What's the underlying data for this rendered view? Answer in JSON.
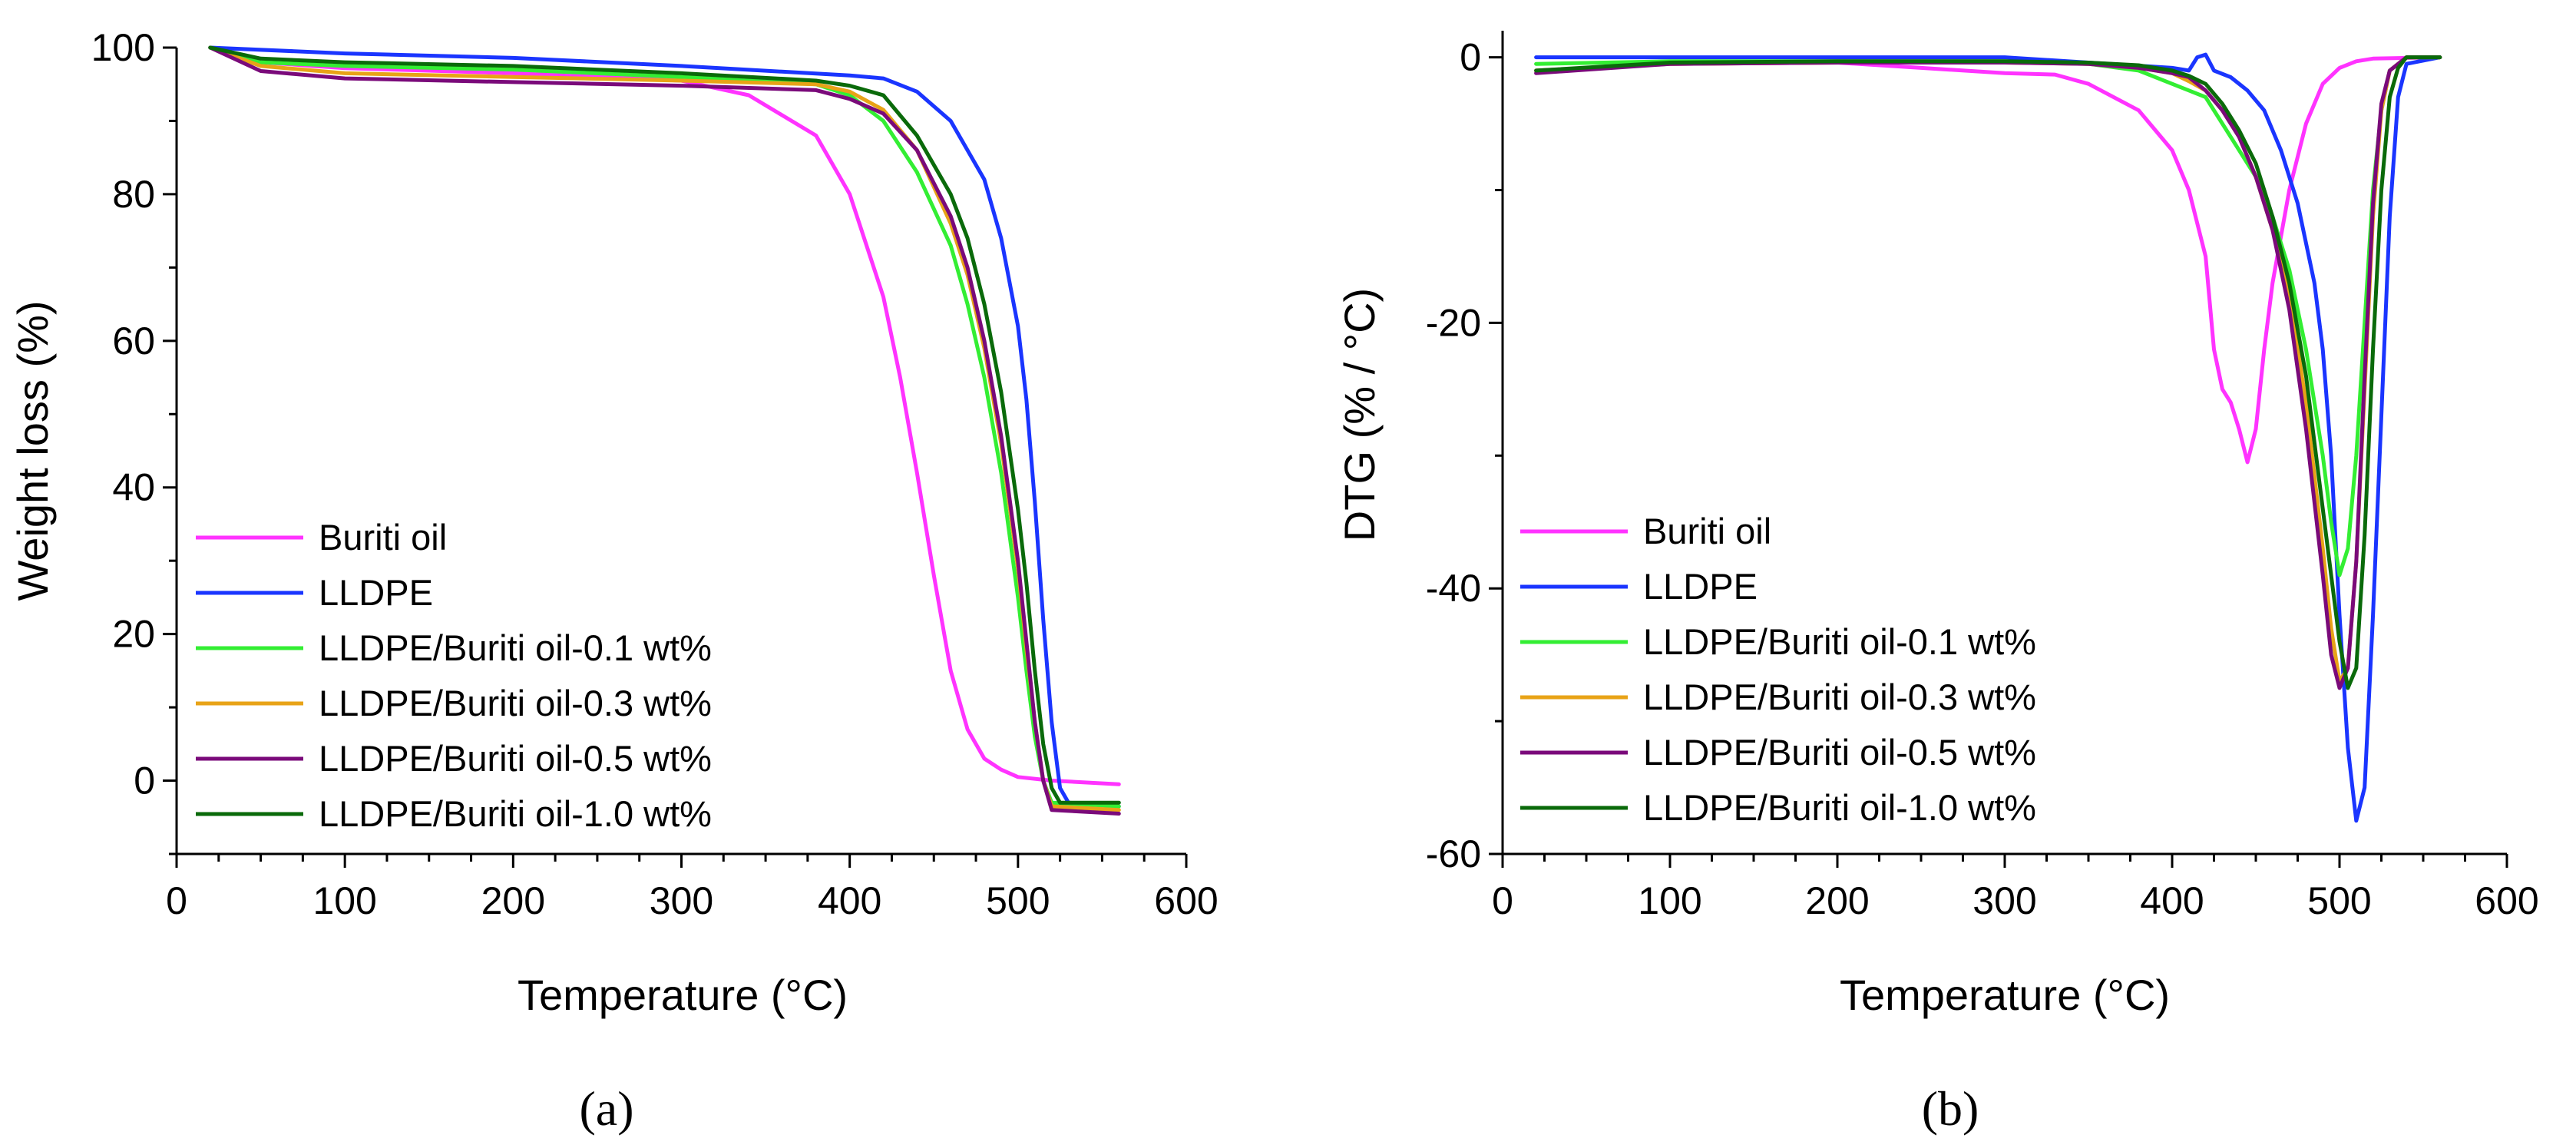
{
  "chart_data": [
    {
      "id": "a",
      "type": "line",
      "panel_label": "(a)",
      "title": "",
      "xlabel": "Temperature (°C)",
      "ylabel": "Weight loss (%)",
      "xlim": [
        0,
        600
      ],
      "ylim": [
        -10,
        100
      ],
      "xticks": [
        0,
        100,
        200,
        300,
        400,
        500,
        600
      ],
      "yticks": [
        0,
        20,
        40,
        60,
        80,
        100
      ],
      "legend_position": "bottom-left",
      "series": [
        {
          "name": "Buriti oil",
          "color": "#ff33ff",
          "x": [
            20,
            50,
            100,
            200,
            300,
            340,
            380,
            400,
            420,
            430,
            440,
            450,
            460,
            470,
            480,
            490,
            500,
            520,
            560
          ],
          "y": [
            100,
            98,
            97.2,
            96.5,
            95.5,
            93.5,
            88,
            80,
            66,
            55,
            42,
            28,
            15,
            7,
            3,
            1.5,
            0.5,
            0,
            -0.5
          ]
        },
        {
          "name": "LLDPE",
          "color": "#1a35ff",
          "x": [
            20,
            100,
            200,
            300,
            400,
            420,
            440,
            460,
            480,
            490,
            500,
            505,
            510,
            515,
            520,
            525,
            530,
            560
          ],
          "y": [
            100,
            99.2,
            98.6,
            97.5,
            96.2,
            95.8,
            94,
            90,
            82,
            74,
            62,
            52,
            38,
            22,
            8,
            -1,
            -3,
            -3.5
          ]
        },
        {
          "name": "LLDPE/Buriti oil-0.1 wt%",
          "color": "#33ee33",
          "x": [
            20,
            50,
            100,
            200,
            300,
            380,
            400,
            420,
            440,
            460,
            470,
            480,
            490,
            500,
            505,
            510,
            515,
            520,
            560
          ],
          "y": [
            100,
            98,
            97.5,
            97,
            96,
            95,
            93.5,
            90,
            83,
            73,
            65,
            55,
            42,
            25,
            15,
            6,
            0,
            -3,
            -3.5
          ]
        },
        {
          "name": "LLDPE/Buriti oil-0.3 wt%",
          "color": "#e8a317",
          "x": [
            20,
            50,
            100,
            200,
            300,
            380,
            400,
            420,
            440,
            460,
            470,
            480,
            490,
            500,
            505,
            510,
            515,
            520,
            560
          ],
          "y": [
            100,
            97.5,
            96.5,
            96,
            95.5,
            95,
            94,
            91.5,
            86,
            76,
            69,
            59,
            46,
            29,
            18,
            8,
            0,
            -3.5,
            -4
          ]
        },
        {
          "name": "LLDPE/Buriti oil-0.5 wt%",
          "color": "#7a0a7a",
          "x": [
            20,
            50,
            100,
            200,
            300,
            380,
            400,
            420,
            440,
            460,
            470,
            480,
            490,
            500,
            505,
            510,
            515,
            520,
            560
          ],
          "y": [
            100,
            96.8,
            95.8,
            95.3,
            94.8,
            94.2,
            93,
            91,
            86,
            77,
            70,
            60,
            47,
            30,
            19,
            8,
            0,
            -4,
            -4.5
          ]
        },
        {
          "name": "LLDPE/Buriti oil-1.0 wt%",
          "color": "#0a6a0a",
          "x": [
            20,
            50,
            100,
            200,
            300,
            380,
            400,
            420,
            440,
            460,
            470,
            480,
            490,
            500,
            505,
            510,
            515,
            520,
            525,
            560
          ],
          "y": [
            100,
            98.5,
            98,
            97.5,
            96.5,
            95.5,
            94.8,
            93.5,
            88,
            80,
            74,
            65,
            53,
            37,
            27,
            15,
            5,
            -1,
            -3,
            -3
          ]
        }
      ]
    },
    {
      "id": "b",
      "type": "line",
      "panel_label": "(b)",
      "title": "",
      "xlabel": "Temperature (°C)",
      "ylabel": "DTG (% / °C)",
      "xlim": [
        0,
        600
      ],
      "ylim": [
        -60,
        2
      ],
      "xticks": [
        0,
        100,
        200,
        300,
        400,
        500,
        600
      ],
      "yticks": [
        -60,
        -40,
        -20,
        0
      ],
      "legend_position": "bottom-left",
      "series": [
        {
          "name": "Buriti oil",
          "color": "#ff33ff",
          "x": [
            20,
            100,
            200,
            250,
            300,
            330,
            350,
            380,
            400,
            410,
            420,
            425,
            430,
            435,
            440,
            445,
            450,
            455,
            460,
            470,
            480,
            490,
            500,
            510,
            520,
            560
          ],
          "y": [
            -1,
            -0.5,
            -0.4,
            -0.8,
            -1.2,
            -1.3,
            -2,
            -4,
            -7,
            -10,
            -15,
            -22,
            -25,
            -26,
            -28,
            -30.5,
            -28,
            -22,
            -17,
            -10,
            -5,
            -2,
            -0.8,
            -0.3,
            -0.1,
            0
          ]
        },
        {
          "name": "LLDPE",
          "color": "#1a35ff",
          "x": [
            20,
            100,
            200,
            300,
            400,
            410,
            415,
            420,
            425,
            435,
            445,
            455,
            465,
            475,
            485,
            490,
            495,
            500,
            505,
            510,
            515,
            520,
            525,
            530,
            535,
            540,
            560
          ],
          "y": [
            0,
            0,
            0,
            0,
            -0.8,
            -1,
            0,
            0.2,
            -1,
            -1.5,
            -2.5,
            -4,
            -7,
            -11,
            -17,
            -22,
            -30,
            -42,
            -52,
            -57.5,
            -55,
            -42,
            -27,
            -12,
            -3,
            -0.5,
            0
          ]
        },
        {
          "name": "LLDPE/Buriti oil-0.1 wt%",
          "color": "#33ee33",
          "x": [
            20,
            100,
            200,
            300,
            350,
            380,
            400,
            410,
            420,
            430,
            440,
            450,
            460,
            470,
            480,
            490,
            495,
            500,
            505,
            510,
            515,
            520,
            525,
            530,
            540,
            560
          ],
          "y": [
            -0.5,
            -0.3,
            -0.3,
            -0.3,
            -0.5,
            -1,
            -2,
            -2.5,
            -3,
            -5,
            -7,
            -9,
            -12,
            -16,
            -22,
            -30,
            -35,
            -39,
            -37,
            -30,
            -20,
            -10,
            -4,
            -1,
            0,
            0
          ]
        },
        {
          "name": "LLDPE/Buriti oil-0.3 wt%",
          "color": "#e8a317",
          "x": [
            20,
            100,
            200,
            300,
            350,
            380,
            400,
            410,
            420,
            430,
            440,
            450,
            460,
            470,
            480,
            490,
            495,
            500,
            505,
            510,
            515,
            520,
            525,
            530,
            540,
            560
          ],
          "y": [
            -1,
            -0.5,
            -0.4,
            -0.4,
            -0.5,
            -0.8,
            -1.2,
            -1.8,
            -2.5,
            -4,
            -6,
            -9,
            -13,
            -18,
            -26,
            -37,
            -43,
            -47,
            -46,
            -38,
            -25,
            -12,
            -4,
            -1,
            0,
            0
          ]
        },
        {
          "name": "LLDPE/Buriti oil-0.5 wt%",
          "color": "#7a0a7a",
          "x": [
            20,
            100,
            200,
            300,
            350,
            380,
            400,
            410,
            420,
            430,
            440,
            450,
            460,
            470,
            480,
            490,
            495,
            500,
            505,
            510,
            515,
            520,
            525,
            530,
            540,
            560
          ],
          "y": [
            -1.2,
            -0.5,
            -0.4,
            -0.4,
            -0.5,
            -0.8,
            -1.2,
            -1.5,
            -2.5,
            -4,
            -6,
            -9,
            -13,
            -19,
            -28,
            -39,
            -45,
            -47.5,
            -46,
            -38,
            -24,
            -11,
            -3.5,
            -1,
            0,
            0
          ]
        },
        {
          "name": "LLDPE/Buriti oil-1.0 wt%",
          "color": "#0a6a0a",
          "x": [
            20,
            100,
            200,
            300,
            350,
            380,
            400,
            410,
            420,
            430,
            440,
            450,
            460,
            470,
            480,
            490,
            500,
            505,
            510,
            515,
            520,
            525,
            530,
            535,
            540,
            560
          ],
          "y": [
            -1,
            -0.4,
            -0.3,
            -0.3,
            -0.4,
            -0.6,
            -1,
            -1.4,
            -2,
            -3.5,
            -5.5,
            -8,
            -12,
            -17,
            -24,
            -34,
            -44,
            -47.5,
            -46,
            -36,
            -22,
            -10,
            -3,
            -0.8,
            0,
            0
          ]
        }
      ]
    }
  ]
}
